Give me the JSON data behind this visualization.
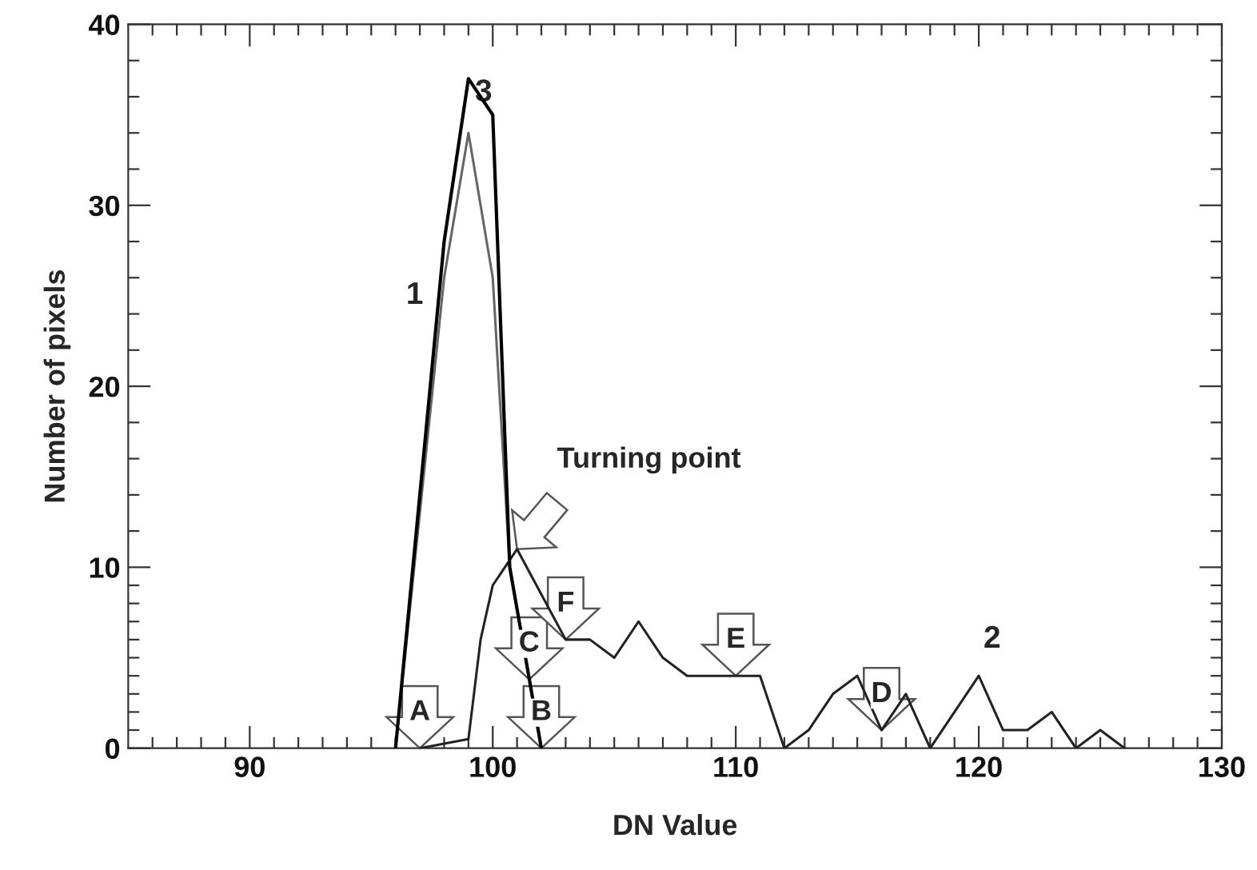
{
  "chart_data": {
    "type": "line",
    "xlabel": "DN Value",
    "ylabel": "Number of pixels",
    "xlim": [
      85,
      130
    ],
    "ylim": [
      0,
      40
    ],
    "xticks": [
      {
        "value": 86,
        "label": null
      },
      {
        "value": 87,
        "label": null
      },
      {
        "value": 88,
        "label": null
      },
      {
        "value": 89,
        "label": null
      },
      90,
      {
        "value": 91,
        "label": null
      },
      {
        "value": 92,
        "label": null
      },
      {
        "value": 93,
        "label": null
      },
      {
        "value": 94,
        "label": null
      },
      {
        "value": 95,
        "label": null
      },
      {
        "value": 96,
        "label": null
      },
      {
        "value": 97,
        "label": null
      },
      {
        "value": 98,
        "label": null
      },
      {
        "value": 99,
        "label": null
      },
      100,
      {
        "value": 101,
        "label": null
      },
      {
        "value": 102,
        "label": null
      },
      {
        "value": 103,
        "label": null
      },
      {
        "value": 104,
        "label": null
      },
      {
        "value": 105,
        "label": null
      },
      {
        "value": 106,
        "label": null
      },
      {
        "value": 107,
        "label": null
      },
      {
        "value": 108,
        "label": null
      },
      {
        "value": 109,
        "label": null
      },
      110,
      {
        "value": 111,
        "label": null
      },
      {
        "value": 112,
        "label": null
      },
      {
        "value": 113,
        "label": null
      },
      {
        "value": 114,
        "label": null
      },
      {
        "value": 115,
        "label": null
      },
      {
        "value": 116,
        "label": null
      },
      {
        "value": 117,
        "label": null
      },
      {
        "value": 118,
        "label": null
      },
      {
        "value": 119,
        "label": null
      },
      120,
      {
        "value": 121,
        "label": null
      },
      {
        "value": 122,
        "label": null
      },
      {
        "value": 123,
        "label": null
      },
      {
        "value": 124,
        "label": null
      },
      {
        "value": 125,
        "label": null
      },
      {
        "value": 126,
        "label": null
      },
      {
        "value": 127,
        "label": null
      },
      {
        "value": 128,
        "label": null
      },
      {
        "value": 129,
        "label": null
      },
      130
    ],
    "yticks": [
      0,
      {
        "value": 1,
        "label": null
      },
      {
        "value": 2,
        "label": null
      },
      {
        "value": 3,
        "label": null
      },
      {
        "value": 4,
        "label": null
      },
      {
        "value": 5,
        "label": null
      },
      {
        "value": 6,
        "label": null
      },
      {
        "value": 7,
        "label": null
      },
      {
        "value": 8,
        "label": null
      },
      {
        "value": 9,
        "label": null
      },
      10,
      {
        "value": 12,
        "label": null
      },
      {
        "value": 14,
        "label": null
      },
      {
        "value": 16,
        "label": null
      },
      {
        "value": 18,
        "label": null
      },
      20,
      {
        "value": 22,
        "label": null
      },
      {
        "value": 24,
        "label": null
      },
      {
        "value": 26,
        "label": null
      },
      {
        "value": 28,
        "label": null
      },
      30,
      {
        "value": 32,
        "label": null
      },
      {
        "value": 34,
        "label": null
      },
      {
        "value": 36,
        "label": null
      },
      {
        "value": 38,
        "label": null
      },
      40
    ],
    "grid": false,
    "legend": false,
    "marker": "none",
    "line_style": "solid",
    "series": [
      {
        "color": "#666666",
        "x": [
          96,
          98,
          99,
          100,
          100.7,
          102
        ],
        "values": [
          0,
          26,
          34,
          26,
          10,
          0
        ]
      },
      {
        "color": "#222222",
        "x": [
          97,
          99,
          99.5,
          100,
          100.5,
          101,
          103,
          104,
          105,
          106,
          107,
          108,
          111,
          112,
          113,
          114,
          115,
          116,
          117,
          118,
          120,
          121,
          122,
          123,
          124,
          125,
          126
        ],
        "values": [
          0,
          0.5,
          6,
          9,
          10,
          11,
          6,
          6,
          5,
          7,
          5,
          4,
          4,
          0,
          1,
          3,
          4,
          1,
          3,
          0,
          4,
          1,
          1,
          2,
          0,
          1,
          0
        ]
      },
      {
        "color": "#000000",
        "x": [
          96,
          98,
          99,
          100,
          100.7,
          102
        ],
        "values": [
          0,
          28,
          37,
          35,
          10,
          0
        ]
      }
    ],
    "annotations": [
      "1",
      "3",
      "2",
      {
        "text": "Turning point",
        "x": 101,
        "y": 11
      },
      {
        "text": "A",
        "x": 97,
        "y": 0
      },
      {
        "text": "B",
        "x": 102,
        "y": 0
      },
      {
        "text": "C",
        "x": 101.5,
        "y": 3.8
      },
      {
        "text": "F",
        "x": 103,
        "y": 6
      },
      {
        "text": "E",
        "x": 110,
        "y": 4
      },
      {
        "text": "D",
        "x": 116,
        "y": 1
      }
    ]
  }
}
